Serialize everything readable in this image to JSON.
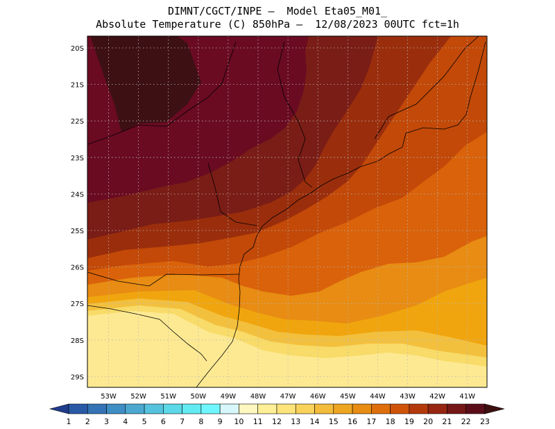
{
  "header": {
    "line1": "DIMNT/CGCT/INPE —  Model Eta05_M01_",
    "line2": "Absolute Temperature (C) 850hPa —  12/08/2023 00UTC fct=1h"
  },
  "map": {
    "lat_labels": [
      "20S",
      "21S",
      "22S",
      "23S",
      "24S",
      "25S",
      "26S",
      "27S",
      "28S",
      "29S"
    ],
    "lon_labels": [
      "53W",
      "52W",
      "51W",
      "50W",
      "49W",
      "48W",
      "47W",
      "46W",
      "45W",
      "44W",
      "43W",
      "42W",
      "41W"
    ],
    "field": "temperature-850hPa"
  },
  "colorbar": {
    "labels": [
      "1",
      "2",
      "3",
      "4",
      "5",
      "6",
      "7",
      "8",
      "9",
      "10",
      "11",
      "12",
      "13",
      "14",
      "15",
      "16",
      "17",
      "18",
      "19",
      "20",
      "21",
      "22",
      "23"
    ],
    "colors": [
      "#1f3d8c",
      "#2a59a6",
      "#3474b6",
      "#3f8ec4",
      "#4ba9d1",
      "#55c3de",
      "#5cd9e8",
      "#62ebf2",
      "#6ff7ff",
      "#d7f7fa",
      "#fff7c0",
      "#ffef96",
      "#fde47a",
      "#f9d25c",
      "#f4bc3c",
      "#eea622",
      "#e88c13",
      "#df6f0b",
      "#cf540a",
      "#b53a0b",
      "#962611",
      "#761717",
      "#5a0d19",
      "#3d0f10"
    ]
  },
  "palette": {
    "c23": "#3d1014",
    "c22": "#6a0b22",
    "c21": "#7a1d16",
    "c20": "#9a2e0c",
    "c19": "#c24908",
    "c18": "#d9620a",
    "c17": "#e88c13",
    "c16": "#f0a50e",
    "c15": "#f3c03e",
    "c14": "#f8db68",
    "c13": "#fde992"
  }
}
